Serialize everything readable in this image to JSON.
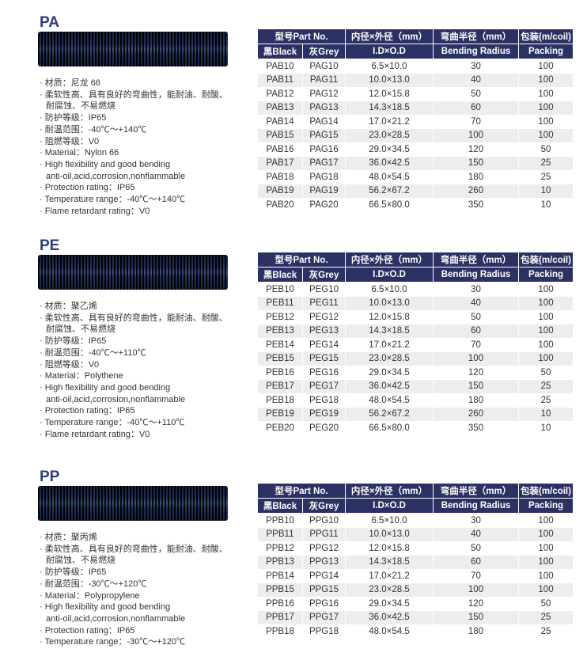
{
  "colors": {
    "header_bg": "#2c3163",
    "title": "#2e3a7c",
    "row_alt": "#ededed"
  },
  "table_headers": {
    "part_no": "型号Part No.",
    "id_od": "内径×外径（mm）",
    "radius": "弯曲半径（mm）",
    "packing": "包装(m/coil)",
    "black": "黑Black",
    "grey": "灰Grey",
    "id_od_en": "I.D×O.D",
    "radius_en": "Bending Radius",
    "packing_en": "Packing"
  },
  "sections": [
    {
      "title": "PA",
      "bullets": [
        "· 材质：尼龙 66",
        "· 柔软性高、具有良好的弯曲性，能耐油、耐酸、",
        "  耐腐蚀、不易燃烧",
        "· 防护等级：IP65",
        "· 耐温范围：-40℃～+140℃",
        "· 阻燃等级：V0",
        "· Material：Nylon 66",
        "· High flexibility and good bending",
        "  anti-oil,acid,corrosion,nonflammable",
        "· Protection rating：IP65",
        "· Temperature range：-40℃～+140℃",
        "· Flame retardant rating：V0"
      ],
      "rows": [
        [
          "PAB10",
          "PAG10",
          "6.5×10.0",
          "30",
          "100"
        ],
        [
          "PAB11",
          "PAG11",
          "10.0×13.0",
          "40",
          "100"
        ],
        [
          "PAB12",
          "PAG12",
          "12.0×15.8",
          "50",
          "100"
        ],
        [
          "PAB13",
          "PAG13",
          "14.3×18.5",
          "60",
          "100"
        ],
        [
          "PAB14",
          "PAG14",
          "17.0×21.2",
          "70",
          "100"
        ],
        [
          "PAB15",
          "PAG15",
          "23.0×28.5",
          "100",
          "100"
        ],
        [
          "PAB16",
          "PAG16",
          "29.0×34.5",
          "120",
          "50"
        ],
        [
          "PAB17",
          "PAG17",
          "36.0×42.5",
          "150",
          "25"
        ],
        [
          "PAB18",
          "PAG18",
          "48.0×54.5",
          "180",
          "25"
        ],
        [
          "PAB19",
          "PAG19",
          "56.2×67.2",
          "260",
          "10"
        ],
        [
          "PAB20",
          "PAG20",
          "66.5×80.0",
          "350",
          "10"
        ]
      ]
    },
    {
      "title": "PE",
      "bullets": [
        "· 材质：聚乙烯",
        "· 柔软性高、具有良好的弯曲性，能耐油、耐酸、",
        "  耐腐蚀、不易燃烧",
        "· 防护等级：IP65",
        "· 耐温范围：-40℃～+110℃",
        "· 阻燃等级：V0",
        "· Material：Polythene",
        "· High flexibility and good bending",
        "  anti-oil,acid,corrosion,nonflammable",
        "· Protection rating：IP65",
        "· Temperature range：-40℃～+110℃",
        "· Flame retardant rating：V0"
      ],
      "rows": [
        [
          "PEB10",
          "PEG10",
          "6.5×10.0",
          "30",
          "100"
        ],
        [
          "PEB11",
          "PEG11",
          "10.0×13.0",
          "40",
          "100"
        ],
        [
          "PEB12",
          "PEG12",
          "12.0×15.8",
          "50",
          "100"
        ],
        [
          "PEB13",
          "PEG13",
          "14.3×18.5",
          "60",
          "100"
        ],
        [
          "PEB14",
          "PEG14",
          "17.0×21.2",
          "70",
          "100"
        ],
        [
          "PEB15",
          "PEG15",
          "23.0×28.5",
          "100",
          "100"
        ],
        [
          "PEB16",
          "PEG16",
          "29.0×34.5",
          "120",
          "50"
        ],
        [
          "PEB17",
          "PEG17",
          "36.0×42.5",
          "150",
          "25"
        ],
        [
          "PEB18",
          "PEG18",
          "48.0×54.5",
          "180",
          "25"
        ],
        [
          "PEB19",
          "PEG19",
          "56.2×67.2",
          "260",
          "10"
        ],
        [
          "PEB20",
          "PEG20",
          "66.5×80.0",
          "350",
          "10"
        ]
      ]
    },
    {
      "title": "PP",
      "bullets": [
        "· 材质：聚丙烯",
        "· 柔软性高、具有良好的弯曲性，能耐油、耐酸、",
        "  耐腐蚀、不易燃烧",
        "· 防护等级：IP65",
        "· 耐温范围：-30℃～+120℃",
        "· Material：Polypropylene",
        "· High flexibility and good bending",
        "  anti-oil,acid,corrosion,nonflammable",
        "· Protection rating：IP65",
        "· Temperature range：-30℃～+120℃"
      ],
      "rows": [
        [
          "PPB10",
          "PPG10",
          "6.5×10.0",
          "30",
          "100"
        ],
        [
          "PPB11",
          "PPG11",
          "10.0×13.0",
          "40",
          "100"
        ],
        [
          "PPB12",
          "PPG12",
          "12.0×15.8",
          "50",
          "100"
        ],
        [
          "PPB13",
          "PPG13",
          "14.3×18.5",
          "60",
          "100"
        ],
        [
          "PPB14",
          "PPG14",
          "17.0×21.2",
          "70",
          "100"
        ],
        [
          "PPB15",
          "PPG15",
          "23.0×28.5",
          "100",
          "100"
        ],
        [
          "PPB16",
          "PPG16",
          "29.0×34.5",
          "120",
          "50"
        ],
        [
          "PPB17",
          "PPG17",
          "36.0×42.5",
          "150",
          "25"
        ],
        [
          "PPB18",
          "PPG18",
          "48.0×54.5",
          "180",
          "25"
        ]
      ]
    }
  ]
}
